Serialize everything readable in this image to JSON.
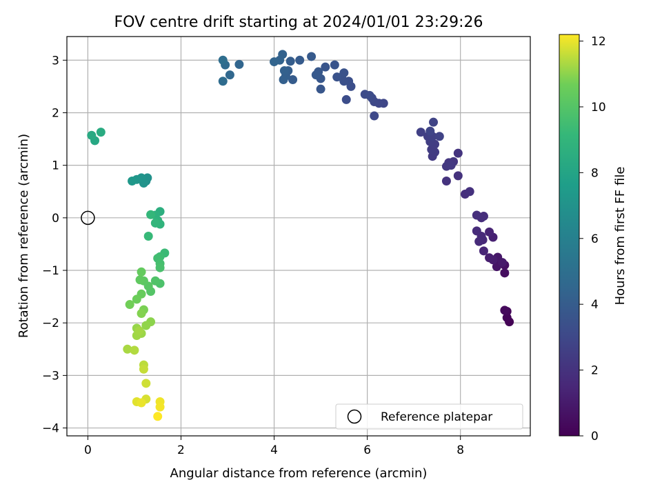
{
  "chart_data": {
    "type": "scatter",
    "title": "FOV centre drift starting at 2024/01/01 23:29:26",
    "xlabel": "Angular distance from reference (arcmin)",
    "ylabel": "Rotation from reference (arcmin)",
    "xlim": [
      -0.45,
      9.5
    ],
    "ylim": [
      -4.15,
      3.45
    ],
    "xticks": [
      0,
      2,
      4,
      6,
      8
    ],
    "yticks": [
      -4,
      -3,
      -2,
      -1,
      0,
      1,
      2,
      3
    ],
    "grid": true,
    "legend": {
      "placement": "lower-right",
      "entries": [
        "Reference platepar"
      ]
    },
    "reference_point": {
      "x": 0,
      "y": 0
    },
    "colorbar": {
      "label": "Hours from first FF file",
      "colormap": "viridis",
      "range": [
        0,
        12.2
      ],
      "ticks": [
        0,
        2,
        4,
        6,
        8,
        10,
        12
      ]
    },
    "points": [
      [
        9.05,
        -1.98,
        0.05
      ],
      [
        9.0,
        -1.9,
        0.15
      ],
      [
        9.0,
        -1.78,
        0.25
      ],
      [
        8.95,
        -1.76,
        0.35
      ],
      [
        8.95,
        -1.05,
        0.45
      ],
      [
        8.95,
        -0.9,
        0.55
      ],
      [
        8.85,
        -0.85,
        0.65
      ],
      [
        8.78,
        -0.93,
        0.75
      ],
      [
        8.8,
        -0.75,
        0.85
      ],
      [
        8.9,
        -0.85,
        0.95
      ],
      [
        8.7,
        -0.8,
        1.05
      ],
      [
        8.62,
        -0.76,
        1.15
      ],
      [
        8.7,
        -0.37,
        1.25
      ],
      [
        8.62,
        -0.27,
        1.35
      ],
      [
        8.5,
        -0.63,
        1.45
      ],
      [
        8.48,
        -0.42,
        1.55
      ],
      [
        8.45,
        -0.35,
        1.6
      ],
      [
        8.4,
        -0.45,
        1.65
      ],
      [
        8.35,
        -0.25,
        1.7
      ],
      [
        8.45,
        0.0,
        1.75
      ],
      [
        8.5,
        0.03,
        1.8
      ],
      [
        8.35,
        0.05,
        1.85
      ],
      [
        8.1,
        0.45,
        1.9
      ],
      [
        8.2,
        0.5,
        1.95
      ],
      [
        7.95,
        0.8,
        2.0
      ],
      [
        7.7,
        0.7,
        2.05
      ],
      [
        7.95,
        1.23,
        2.1
      ],
      [
        7.85,
        1.07,
        2.15
      ],
      [
        7.75,
        1.05,
        2.2
      ],
      [
        7.7,
        0.98,
        2.25
      ],
      [
        7.8,
        1.0,
        2.3
      ],
      [
        7.4,
        1.17,
        2.35
      ],
      [
        7.45,
        1.25,
        2.4
      ],
      [
        7.38,
        1.3,
        2.45
      ],
      [
        7.45,
        1.4,
        2.5
      ],
      [
        7.35,
        1.45,
        2.55
      ],
      [
        7.3,
        1.55,
        2.6
      ],
      [
        7.15,
        1.63,
        2.65
      ],
      [
        7.4,
        1.55,
        2.7
      ],
      [
        7.55,
        1.55,
        2.75
      ],
      [
        7.42,
        1.82,
        2.8
      ],
      [
        7.35,
        1.65,
        2.85
      ],
      [
        6.35,
        2.18,
        2.9
      ],
      [
        6.25,
        2.18,
        2.95
      ],
      [
        6.15,
        2.21,
        3.0
      ],
      [
        6.15,
        1.94,
        3.05
      ],
      [
        6.1,
        2.28,
        3.1
      ],
      [
        5.95,
        2.35,
        3.15
      ],
      [
        6.05,
        2.33,
        3.2
      ],
      [
        5.55,
        2.25,
        3.25
      ],
      [
        5.65,
        2.5,
        3.3
      ],
      [
        5.6,
        2.6,
        3.35
      ],
      [
        5.5,
        2.6,
        3.4
      ],
      [
        5.45,
        2.68,
        3.45
      ],
      [
        5.5,
        2.76,
        3.5
      ],
      [
        5.35,
        2.68,
        3.55
      ],
      [
        5.3,
        2.91,
        3.6
      ],
      [
        5.1,
        2.87,
        3.65
      ],
      [
        5.0,
        2.45,
        3.7
      ],
      [
        5.0,
        2.65,
        3.75
      ],
      [
        4.95,
        2.78,
        3.8
      ],
      [
        4.9,
        2.72,
        3.85
      ],
      [
        4.8,
        3.07,
        3.9
      ],
      [
        4.55,
        3.0,
        3.95
      ],
      [
        4.4,
        2.63,
        4.0
      ],
      [
        4.35,
        2.98,
        4.05
      ],
      [
        4.3,
        2.8,
        4.1
      ],
      [
        4.25,
        2.7,
        4.15
      ],
      [
        4.2,
        2.63,
        4.2
      ],
      [
        4.22,
        2.8,
        4.25
      ],
      [
        4.18,
        3.11,
        4.3
      ],
      [
        4.12,
        3.0,
        4.35
      ],
      [
        4.0,
        2.97,
        4.4
      ],
      [
        3.25,
        2.92,
        4.5
      ],
      [
        3.05,
        2.72,
        4.6
      ],
      [
        2.95,
        2.91,
        4.7
      ],
      [
        2.9,
        2.6,
        4.8
      ],
      [
        2.9,
        3.0,
        4.9
      ],
      [
        1.25,
        0.7,
        6.8
      ],
      [
        1.28,
        0.76,
        6.9
      ],
      [
        1.2,
        0.66,
        7.0
      ],
      [
        1.15,
        0.76,
        7.1
      ],
      [
        1.05,
        0.73,
        7.2
      ],
      [
        0.95,
        0.7,
        7.3
      ],
      [
        0.15,
        1.47,
        8.2
      ],
      [
        0.08,
        1.57,
        8.3
      ],
      [
        0.28,
        1.63,
        8.4
      ],
      [
        1.55,
        0.12,
        8.6
      ],
      [
        1.45,
        0.05,
        8.7
      ],
      [
        1.5,
        -0.05,
        8.8
      ],
      [
        1.55,
        -0.12,
        8.9
      ],
      [
        1.45,
        -0.1,
        9.0
      ],
      [
        1.35,
        0.06,
        9.1
      ],
      [
        1.3,
        -0.35,
        9.2
      ],
      [
        1.65,
        -0.67,
        9.3
      ],
      [
        1.55,
        -0.74,
        9.4
      ],
      [
        1.5,
        -0.77,
        9.5
      ],
      [
        1.55,
        -0.87,
        9.6
      ],
      [
        1.55,
        -0.95,
        9.7
      ],
      [
        1.55,
        -1.25,
        9.8
      ],
      [
        1.45,
        -1.2,
        9.9
      ],
      [
        1.35,
        -1.4,
        10.0
      ],
      [
        1.3,
        -1.3,
        10.1
      ],
      [
        1.2,
        -1.2,
        10.2
      ],
      [
        1.12,
        -1.18,
        10.3
      ],
      [
        1.15,
        -1.03,
        10.4
      ],
      [
        1.15,
        -1.45,
        10.5
      ],
      [
        1.05,
        -1.55,
        10.6
      ],
      [
        0.9,
        -1.65,
        10.7
      ],
      [
        1.2,
        -1.75,
        10.8
      ],
      [
        1.15,
        -1.82,
        10.9
      ],
      [
        1.35,
        -1.98,
        11.0
      ],
      [
        1.25,
        -2.05,
        11.05
      ],
      [
        1.05,
        -2.1,
        11.1
      ],
      [
        1.15,
        -2.2,
        11.15
      ],
      [
        1.05,
        -2.24,
        11.2
      ],
      [
        1.1,
        -2.15,
        11.25
      ],
      [
        0.85,
        -2.5,
        11.3
      ],
      [
        1.0,
        -2.52,
        11.4
      ],
      [
        1.2,
        -2.8,
        11.5
      ],
      [
        1.2,
        -2.88,
        11.6
      ],
      [
        1.25,
        -3.15,
        11.7
      ],
      [
        1.25,
        -3.45,
        11.8
      ],
      [
        1.05,
        -3.5,
        11.9
      ],
      [
        1.15,
        -3.52,
        12.0
      ],
      [
        1.55,
        -3.5,
        12.05
      ],
      [
        1.55,
        -3.6,
        12.1
      ],
      [
        1.5,
        -3.78,
        12.2
      ]
    ]
  }
}
